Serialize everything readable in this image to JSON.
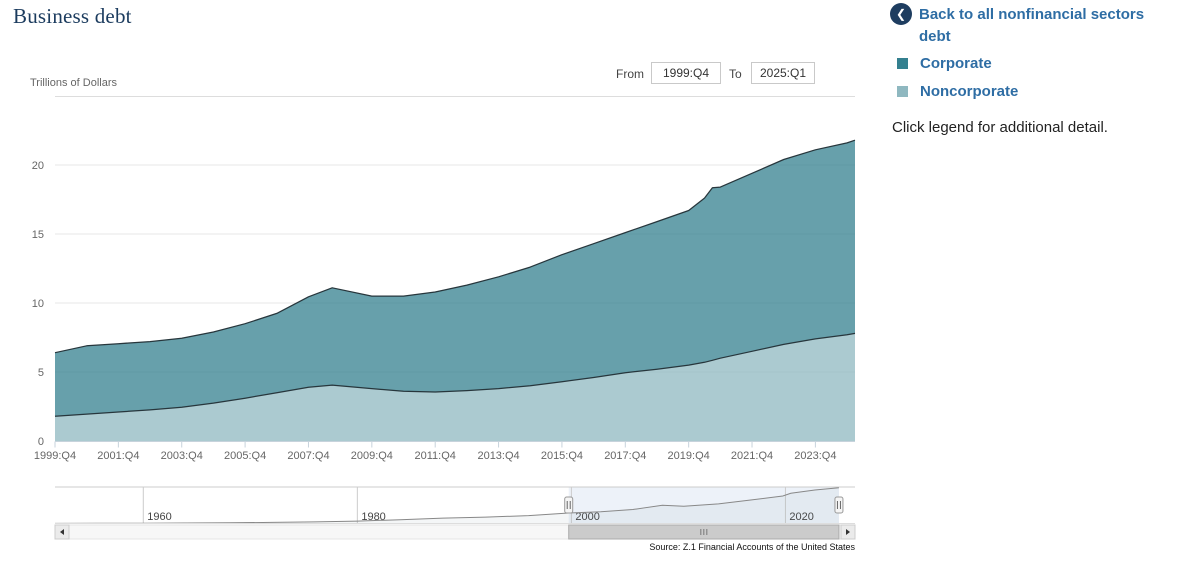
{
  "page": {
    "title": "Business debt",
    "note": "Click legend for additional detail.",
    "source": "Source: Z.1 Financial Accounts of the United States"
  },
  "controls": {
    "from_label": "From",
    "from_value": "1999:Q4",
    "to_label": "To",
    "to_value": "2025:Q1"
  },
  "legend": {
    "back": {
      "label": "Back to all nonfinancial sectors debt",
      "icon": "chevron-left-icon",
      "chevron_glyph": "❮"
    },
    "items": [
      {
        "label": "Corporate",
        "color": "#34808f"
      },
      {
        "label": "Noncorporate",
        "color": "#8fb8c0"
      }
    ]
  },
  "colors": {
    "title_navy": "#1b3b5e",
    "link_blue": "#2e6da4",
    "back_circle_navy": "#1e3d60",
    "corporate": "#34808f",
    "noncorporate": "#8fb8c0",
    "series_outline": "#27363c",
    "gridline": "#e7e7e7",
    "axis_line": "#c7d3dc",
    "tick_text": "#666666",
    "navigator_line": "#888888",
    "navigator_selection": "#edf2f9"
  },
  "chart_data": {
    "type": "area",
    "stacked": true,
    "title": "Business debt",
    "ylabel": "Trillions of Dollars",
    "ylim": [
      0,
      22.5
    ],
    "yticks": [
      0,
      5,
      10,
      15,
      20
    ],
    "grid": "horizontal",
    "legend_position": "right",
    "xtick_labels": [
      "1999:Q4",
      "2001:Q4",
      "2003:Q4",
      "2005:Q4",
      "2007:Q4",
      "2009:Q4",
      "2011:Q4",
      "2013:Q4",
      "2015:Q4",
      "2017:Q4",
      "2019:Q4",
      "2021:Q4",
      "2023:Q4"
    ],
    "x_labels": [
      "1999:Q4",
      "2000:Q4",
      "2001:Q4",
      "2002:Q4",
      "2003:Q4",
      "2004:Q4",
      "2005:Q4",
      "2006:Q4",
      "2007:Q4",
      "2008:Q2",
      "2009:Q4",
      "2010:Q4",
      "2011:Q4",
      "2012:Q4",
      "2013:Q4",
      "2014:Q4",
      "2015:Q4",
      "2016:Q4",
      "2017:Q4",
      "2018:Q4",
      "2019:Q4",
      "2020:Q1",
      "2020:Q2",
      "2020:Q4",
      "2021:Q4",
      "2022:Q4",
      "2023:Q4",
      "2024:Q4",
      "2025:Q1"
    ],
    "x": [
      1999.75,
      2000.75,
      2001.75,
      2002.75,
      2003.75,
      2004.75,
      2005.75,
      2006.75,
      2007.75,
      2008.5,
      2009.75,
      2010.75,
      2011.75,
      2012.75,
      2013.75,
      2014.75,
      2015.75,
      2016.75,
      2017.75,
      2018.75,
      2019.75,
      2020.25,
      2020.5,
      2020.75,
      2021.75,
      2022.75,
      2023.75,
      2024.75,
      2025.0
    ],
    "series": [
      {
        "name": "Noncorporate",
        "color": "#8fb8c0",
        "values": [
          1.8,
          1.95,
          2.1,
          2.25,
          2.45,
          2.75,
          3.1,
          3.5,
          3.9,
          4.05,
          3.8,
          3.6,
          3.55,
          3.65,
          3.8,
          4.0,
          4.3,
          4.6,
          4.95,
          5.2,
          5.5,
          5.7,
          5.85,
          6.0,
          6.5,
          7.0,
          7.4,
          7.7,
          7.8
        ]
      },
      {
        "name": "Corporate",
        "color": "#34808f",
        "values": [
          4.6,
          4.95,
          4.95,
          4.95,
          5.0,
          5.15,
          5.4,
          5.75,
          6.55,
          7.05,
          6.7,
          6.9,
          7.25,
          7.65,
          8.1,
          8.6,
          9.2,
          9.7,
          10.15,
          10.7,
          11.2,
          11.9,
          12.5,
          12.4,
          12.9,
          13.4,
          13.7,
          13.9,
          14.0
        ]
      }
    ],
    "total": [
      6.4,
      6.9,
      7.05,
      7.2,
      7.45,
      7.9,
      8.5,
      9.25,
      10.45,
      11.1,
      10.5,
      10.5,
      10.8,
      11.3,
      11.9,
      12.6,
      13.5,
      14.3,
      15.1,
      15.9,
      16.7,
      17.6,
      18.35,
      18.4,
      19.4,
      20.4,
      21.1,
      21.6,
      21.8
    ],
    "navigator": {
      "year_ticks": [
        1960,
        1980,
        2000,
        2020
      ],
      "x_range": [
        1951.75,
        2026.5
      ],
      "selection": [
        1999.75,
        2025.0
      ],
      "x": [
        1951.75,
        1956,
        1960,
        1964,
        1968,
        1972,
        1976,
        1980,
        1984,
        1988,
        1992,
        1996,
        1999.75,
        2002.75,
        2005.75,
        2008.5,
        2010.5,
        2013.75,
        2016.75,
        2019.75,
        2020.5,
        2022.75,
        2024.75,
        2025.0
      ],
      "total": [
        0.07,
        0.12,
        0.2,
        0.3,
        0.45,
        0.65,
        0.95,
        1.45,
        2.3,
        3.3,
        3.9,
        4.8,
        6.4,
        7.2,
        8.5,
        11.1,
        10.45,
        11.9,
        14.3,
        16.7,
        18.35,
        20.4,
        21.6,
        21.8
      ]
    }
  }
}
